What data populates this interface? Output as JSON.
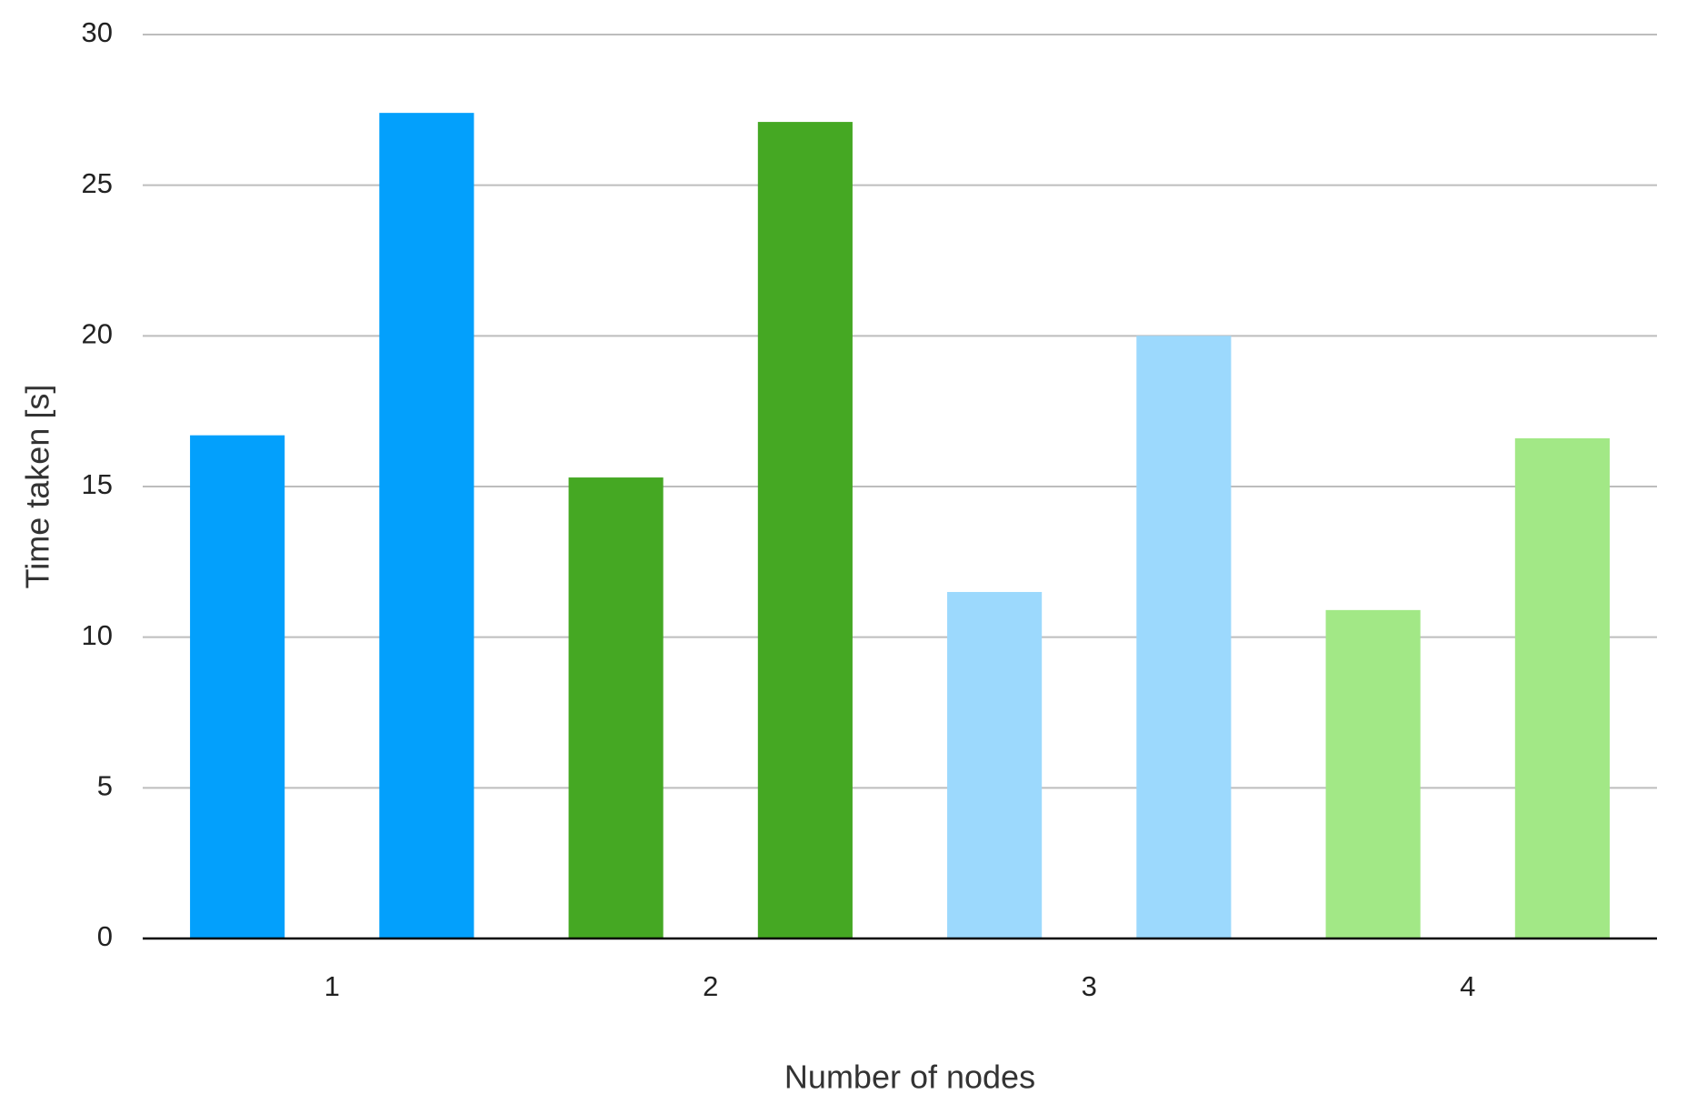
{
  "chart_data": {
    "type": "bar",
    "x_label": "Number of nodes",
    "y_label": "Time taken [s]",
    "categories": [
      "1",
      "2",
      "3",
      "4"
    ],
    "colors": [
      "#03a0fc",
      "#45a823",
      "#9cd9fd",
      "#a2e886"
    ],
    "series": [
      {
        "values": [
          16.7,
          15.3,
          11.5,
          10.9
        ]
      },
      {
        "values": [
          27.4,
          27.1,
          20.0,
          16.6
        ]
      }
    ],
    "ylim": [
      0,
      30
    ],
    "yticks": [
      0,
      5,
      10,
      15,
      20,
      25,
      30
    ],
    "grid": true
  }
}
